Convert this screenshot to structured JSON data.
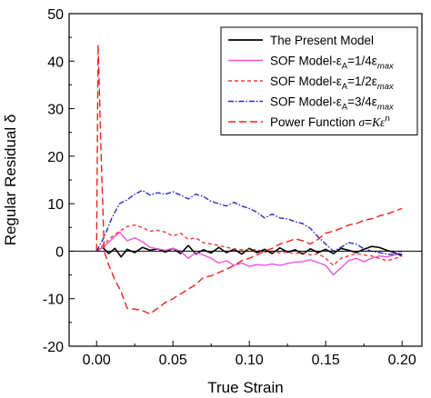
{
  "chart_data": {
    "type": "line",
    "title": "",
    "xlabel": "True Strain",
    "ylabel": "Regular Residual δ",
    "xlim": [
      -0.018,
      0.213
    ],
    "ylim": [
      -20,
      50
    ],
    "x_ticks": [
      0.0,
      0.05,
      0.1,
      0.15,
      0.2
    ],
    "x_tick_labels": [
      "0.00",
      "0.05",
      "0.10",
      "0.15",
      "0.20"
    ],
    "y_ticks": [
      -20,
      -10,
      0,
      10,
      20,
      30,
      40,
      50
    ],
    "y_tick_labels": [
      "-20",
      "-10",
      "0",
      "10",
      "20",
      "30",
      "40",
      "50"
    ],
    "reference_line_y": 0,
    "legend_position": "top-right",
    "series": [
      {
        "name": "The Present Model",
        "label_parts": [
          [
            "The Present Model",
            ""
          ]
        ],
        "color": "#000000",
        "dash": "solid",
        "x": [
          0.0,
          0.004,
          0.008,
          0.012,
          0.016,
          0.02,
          0.025,
          0.03,
          0.035,
          0.04,
          0.045,
          0.05,
          0.055,
          0.06,
          0.065,
          0.07,
          0.075,
          0.08,
          0.085,
          0.09,
          0.095,
          0.1,
          0.105,
          0.11,
          0.115,
          0.12,
          0.125,
          0.13,
          0.135,
          0.14,
          0.145,
          0.15,
          0.155,
          0.16,
          0.165,
          0.17,
          0.175,
          0.18,
          0.185,
          0.19,
          0.195,
          0.2
        ],
        "values": [
          0.0,
          0.8,
          -0.5,
          0.6,
          -1.2,
          0.4,
          -0.3,
          0.8,
          0.2,
          0.5,
          -0.2,
          0.6,
          -0.5,
          1.2,
          -0.6,
          0.3,
          -0.4,
          0.8,
          -0.3,
          0.4,
          -0.6,
          0.6,
          -0.3,
          0.4,
          -0.5,
          0.7,
          -0.2,
          0.3,
          -0.6,
          0.5,
          -0.3,
          0.4,
          -0.5,
          0.6,
          0.2,
          -0.3,
          0.4,
          1.0,
          0.8,
          0.2,
          -0.3,
          -1.0
        ]
      },
      {
        "name": "SOF Model-εA=1/4εmax",
        "label_parts": [
          [
            "SOF Model-ε",
            ""
          ],
          [
            "A",
            "sub"
          ],
          [
            "=1/4ε",
            ""
          ],
          [
            "max",
            "sub-italic"
          ]
        ],
        "color": "#ee55dd",
        "dash": "solid",
        "x": [
          0.0,
          0.005,
          0.01,
          0.015,
          0.02,
          0.025,
          0.03,
          0.035,
          0.04,
          0.045,
          0.05,
          0.055,
          0.06,
          0.065,
          0.07,
          0.075,
          0.08,
          0.085,
          0.09,
          0.095,
          0.1,
          0.105,
          0.11,
          0.115,
          0.12,
          0.125,
          0.13,
          0.135,
          0.14,
          0.145,
          0.15,
          0.155,
          0.16,
          0.165,
          0.17,
          0.175,
          0.18,
          0.185,
          0.19,
          0.195,
          0.2
        ],
        "values": [
          0.0,
          1.0,
          2.5,
          4.0,
          2.2,
          2.8,
          2.0,
          0.8,
          0.5,
          0.2,
          0.6,
          0.0,
          -1.5,
          -0.3,
          -0.8,
          -1.5,
          -2.5,
          -2.0,
          -3.0,
          -2.5,
          -3.2,
          -2.8,
          -3.0,
          -2.7,
          -3.0,
          -2.6,
          -2.3,
          -2.2,
          -1.8,
          -2.4,
          -3.0,
          -5.0,
          -3.5,
          -2.0,
          -1.5,
          -2.2,
          -1.5,
          -1.0,
          -1.2,
          -0.8,
          0.0
        ]
      },
      {
        "name": "SOF Model-εA=1/2εmax",
        "label_parts": [
          [
            "SOF Model-ε",
            ""
          ],
          [
            "A",
            "sub"
          ],
          [
            "=1/2ε",
            ""
          ],
          [
            "max",
            "sub-italic"
          ]
        ],
        "color": "#ee3b3b",
        "dash": "4,3",
        "x": [
          0.0,
          0.005,
          0.01,
          0.015,
          0.02,
          0.025,
          0.03,
          0.035,
          0.04,
          0.045,
          0.05,
          0.055,
          0.06,
          0.065,
          0.07,
          0.075,
          0.08,
          0.085,
          0.09,
          0.095,
          0.1,
          0.105,
          0.11,
          0.115,
          0.12,
          0.125,
          0.13,
          0.135,
          0.14,
          0.145,
          0.15,
          0.155,
          0.16,
          0.165,
          0.17,
          0.175,
          0.18,
          0.185,
          0.19,
          0.195,
          0.2
        ],
        "values": [
          0.0,
          1.5,
          3.0,
          4.2,
          5.2,
          5.5,
          5.0,
          4.2,
          4.4,
          4.0,
          3.2,
          3.8,
          2.5,
          2.8,
          1.8,
          1.5,
          1.2,
          0.8,
          0.5,
          0.3,
          0.4,
          0.3,
          -0.2,
          0.0,
          -0.4,
          -0.2,
          -0.5,
          -0.3,
          -0.8,
          -0.5,
          -1.5,
          -3.0,
          -1.5,
          -1.0,
          -0.5,
          -0.8,
          -1.0,
          -1.5,
          -2.0,
          -1.6,
          -1.0
        ]
      },
      {
        "name": "SOF Model-εA=3/4εmax",
        "label_parts": [
          [
            "SOF Model-ε",
            ""
          ],
          [
            "A",
            "sub"
          ],
          [
            "=3/4ε",
            ""
          ],
          [
            "max",
            "sub-italic"
          ]
        ],
        "color": "#2a2ac8",
        "dash": "6,2,1.5,2",
        "x": [
          0.0,
          0.005,
          0.01,
          0.015,
          0.02,
          0.025,
          0.03,
          0.035,
          0.04,
          0.045,
          0.05,
          0.055,
          0.06,
          0.065,
          0.07,
          0.075,
          0.08,
          0.085,
          0.09,
          0.095,
          0.1,
          0.105,
          0.11,
          0.115,
          0.12,
          0.125,
          0.13,
          0.135,
          0.14,
          0.145,
          0.15,
          0.155,
          0.16,
          0.165,
          0.17,
          0.175,
          0.18,
          0.185,
          0.19,
          0.195,
          0.2
        ],
        "values": [
          0.0,
          3.0,
          7.0,
          10.0,
          10.8,
          12.0,
          12.8,
          11.8,
          12.3,
          12.0,
          12.5,
          11.8,
          11.0,
          12.0,
          11.5,
          10.5,
          10.0,
          9.5,
          10.3,
          9.5,
          9.0,
          8.2,
          7.0,
          7.8,
          7.0,
          6.8,
          6.2,
          5.8,
          4.8,
          3.0,
          1.5,
          0.0,
          0.8,
          1.8,
          1.5,
          0.5,
          0.0,
          -0.3,
          -0.6,
          -0.7,
          -0.6
        ]
      },
      {
        "name": "Power Function σ=Kε^n",
        "label_parts": [
          [
            "Power Function ",
            ""
          ],
          [
            "σ",
            "italic"
          ],
          [
            "=",
            ""
          ],
          [
            "Kε",
            "italic"
          ],
          [
            "n",
            "sup"
          ]
        ],
        "color": "#ee2020",
        "dash": "8,4",
        "x": [
          0.0,
          0.001,
          0.003,
          0.005,
          0.008,
          0.012,
          0.016,
          0.02,
          0.025,
          0.03,
          0.035,
          0.04,
          0.045,
          0.05,
          0.055,
          0.06,
          0.065,
          0.07,
          0.075,
          0.08,
          0.085,
          0.09,
          0.095,
          0.1,
          0.105,
          0.11,
          0.115,
          0.12,
          0.125,
          0.13,
          0.135,
          0.14,
          0.145,
          0.15,
          0.155,
          0.16,
          0.165,
          0.17,
          0.175,
          0.18,
          0.185,
          0.19,
          0.195,
          0.2
        ],
        "values": [
          0.0,
          43.5,
          20.0,
          0.0,
          -3.0,
          -6.0,
          -8.5,
          -12.0,
          -12.2,
          -12.5,
          -13.2,
          -12.0,
          -10.8,
          -10.0,
          -9.0,
          -8.0,
          -7.0,
          -5.5,
          -5.2,
          -4.5,
          -3.8,
          -3.0,
          -2.0,
          -1.5,
          -0.8,
          0.0,
          0.6,
          1.5,
          2.0,
          2.6,
          2.2,
          1.5,
          2.5,
          3.8,
          4.2,
          4.8,
          5.5,
          5.8,
          6.5,
          6.8,
          7.4,
          7.8,
          8.4,
          9.0
        ]
      }
    ]
  }
}
